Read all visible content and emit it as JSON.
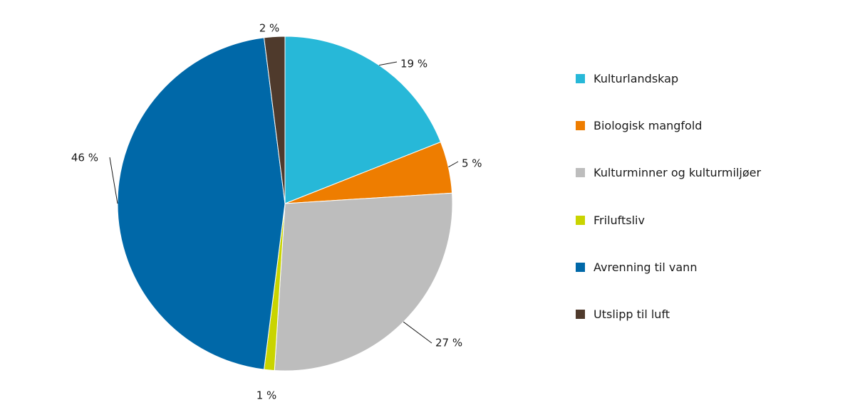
{
  "chart_data": {
    "type": "pie",
    "title": "",
    "legend_position": "right",
    "start_angle_deg": 0,
    "direction": "clockwise",
    "slices": [
      {
        "name": "Kulturlandskap",
        "value": 19,
        "label": "19 %",
        "color": "#27b8d8"
      },
      {
        "name": "Biologisk mangfold",
        "value": 5,
        "label": "5 %",
        "color": "#ee7d00"
      },
      {
        "name": "Kulturminner og kulturmiljøer",
        "value": 27,
        "label": "27 %",
        "color": "#bdbdbd"
      },
      {
        "name": "Friluftsliv",
        "value": 1,
        "label": "1 %",
        "color": "#c9d400"
      },
      {
        "name": "Avrenning til vann",
        "value": 46,
        "label": "46 %",
        "color": "#0068a8"
      },
      {
        "name": "Utslipp til luft",
        "value": 2,
        "label": "2 %",
        "color": "#4f3a2c"
      }
    ]
  }
}
